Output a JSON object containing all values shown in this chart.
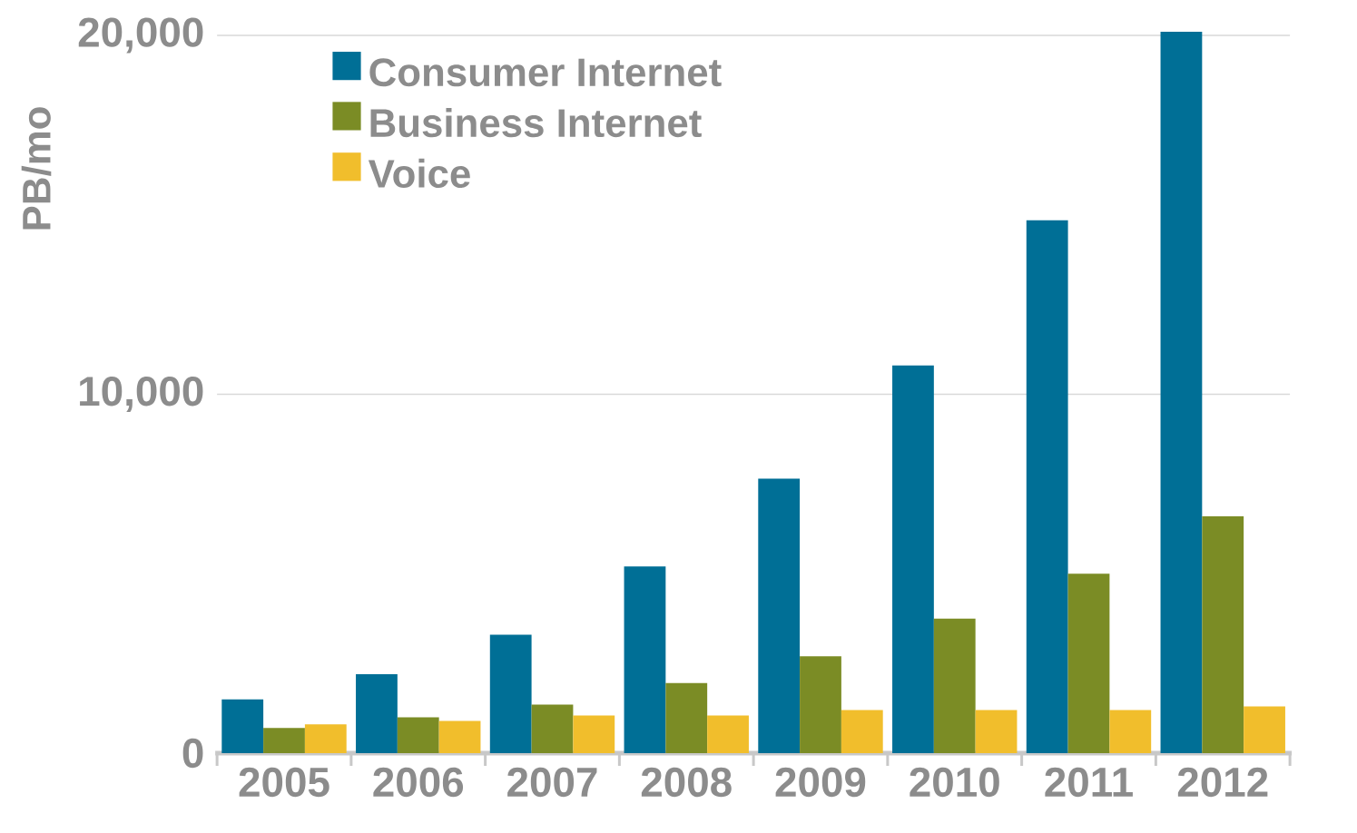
{
  "chart_data": {
    "type": "bar",
    "ylabel": "PB/mo",
    "categories": [
      "2005",
      "2006",
      "2007",
      "2008",
      "2009",
      "2010",
      "2011",
      "2012"
    ],
    "series": [
      {
        "name": "Consumer Internet",
        "color": "#006f96",
        "values": [
          1500,
          2200,
          3300,
          5200,
          7650,
          10800,
          14850,
          20100
        ]
      },
      {
        "name": "Business Internet",
        "color": "#7b8c25",
        "values": [
          700,
          1000,
          1350,
          1950,
          2700,
          3750,
          5000,
          6600
        ]
      },
      {
        "name": "Voice",
        "color": "#f1be2c",
        "values": [
          800,
          900,
          1050,
          1050,
          1200,
          1200,
          1200,
          1300
        ]
      }
    ],
    "ylim": [
      0,
      20100
    ],
    "yticks": [
      {
        "value": 0,
        "label": "0"
      },
      {
        "value": 10000,
        "label": "10,000"
      },
      {
        "value": 20000,
        "label": "20,000"
      }
    ],
    "grid": "y",
    "legend": "top left"
  }
}
